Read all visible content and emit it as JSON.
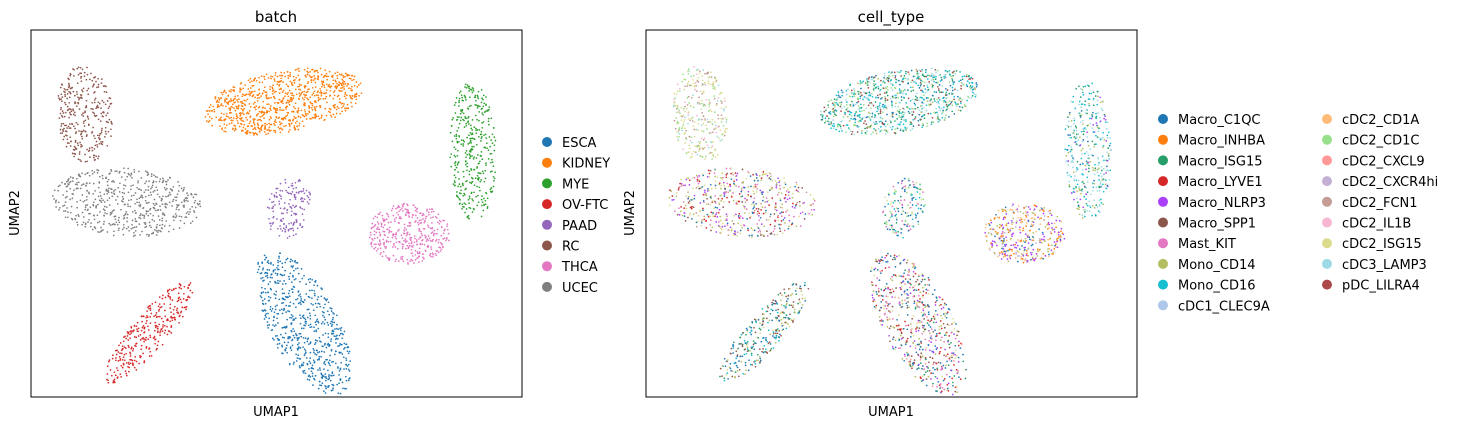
{
  "chart_data": [
    {
      "type": "scatter",
      "title": "batch",
      "xlabel": "UMAP1",
      "ylabel": "UMAP2",
      "xlim": [
        0,
        100
      ],
      "ylim": [
        0,
        100
      ],
      "grid": false,
      "legend": "right",
      "series": [
        {
          "name": "ESCA",
          "color": "#1f77b4",
          "cluster": {
            "cx": 55.5,
            "cy": 20.0,
            "rx": 7.5,
            "ry": 21.0,
            "angle": 0.35,
            "n": 650
          }
        },
        {
          "name": "KIDNEY",
          "color": "#ff7f0e",
          "cluster": {
            "cx": 51.5,
            "cy": 80.5,
            "rx": 17.0,
            "ry": 8.5,
            "angle": 0.28,
            "n": 900
          }
        },
        {
          "name": "MYE",
          "color": "#2ca02c",
          "cluster": {
            "cx": 90.0,
            "cy": 67.0,
            "rx": 4.8,
            "ry": 19.5,
            "angle": 0.02,
            "n": 380
          }
        },
        {
          "name": "OV-FTC",
          "color": "#d62728",
          "cluster": {
            "cx": 24.0,
            "cy": 17.5,
            "rx": 4.2,
            "ry": 16.5,
            "angle": -0.55,
            "n": 320
          }
        },
        {
          "name": "PAAD",
          "color": "#9467bd",
          "cluster": {
            "cx": 52.5,
            "cy": 51.5,
            "rx": 4.5,
            "ry": 8.5,
            "angle": -0.15,
            "n": 160
          }
        },
        {
          "name": "RC",
          "color": "#8c564b",
          "cluster": {
            "cx": 11.0,
            "cy": 77.0,
            "rx": 5.8,
            "ry": 13.5,
            "angle": 0.05,
            "n": 320
          }
        },
        {
          "name": "THCA",
          "color": "#e377c2",
          "cluster": {
            "cx": 77.0,
            "cy": 44.5,
            "rx": 8.5,
            "ry": 8.5,
            "angle": 1.55,
            "n": 400
          }
        },
        {
          "name": "UCEC",
          "color": "#7f7f7f",
          "cluster": {
            "cx": 19.5,
            "cy": 53.0,
            "rx": 9.5,
            "ry": 15.5,
            "angle": 1.45,
            "n": 560
          }
        }
      ]
    },
    {
      "type": "scatter",
      "title": "cell_type",
      "xlabel": "UMAP1",
      "ylabel": "UMAP2",
      "xlim": [
        0,
        100
      ],
      "ylim": [
        0,
        100
      ],
      "grid": false,
      "legend": "right",
      "legend_columns": 2,
      "series": [
        {
          "name": "Macro_C1QC",
          "color": "#1f77b4"
        },
        {
          "name": "Macro_INHBA",
          "color": "#ff7f0e"
        },
        {
          "name": "Macro_ISG15",
          "color": "#279e68"
        },
        {
          "name": "Macro_LYVE1",
          "color": "#d62728"
        },
        {
          "name": "Macro_NLRP3",
          "color": "#aa40fc"
        },
        {
          "name": "Macro_SPP1",
          "color": "#8c564b"
        },
        {
          "name": "Mast_KIT",
          "color": "#e377c2"
        },
        {
          "name": "Mono_CD14",
          "color": "#b5bd61"
        },
        {
          "name": "Mono_CD16",
          "color": "#17becf"
        },
        {
          "name": "cDC1_CLEC9A",
          "color": "#aec7e8"
        },
        {
          "name": "cDC2_CD1A",
          "color": "#ffbb78"
        },
        {
          "name": "cDC2_CD1C",
          "color": "#98df8a"
        },
        {
          "name": "cDC2_CXCL9",
          "color": "#ff9896"
        },
        {
          "name": "cDC2_CXCR4hi",
          "color": "#c5b0d5"
        },
        {
          "name": "cDC2_FCN1",
          "color": "#c49c94"
        },
        {
          "name": "cDC2_IL1B",
          "color": "#f7b6d2"
        },
        {
          "name": "cDC2_ISG15",
          "color": "#dbdb8d"
        },
        {
          "name": "cDC3_LAMP3",
          "color": "#9edae5"
        },
        {
          "name": "pDC_LILRA4",
          "color": "#ad494a"
        }
      ],
      "clusters": [
        {
          "cx": 55.5,
          "cy": 20.0,
          "rx": 7.5,
          "ry": 21.0,
          "angle": 0.35,
          "n": 650,
          "mix": {
            "Macro_C1QC": 4,
            "Macro_LYVE1": 3,
            "Macro_NLRP3": 2,
            "Macro_SPP1": 2,
            "Mast_KIT": 2,
            "Mono_CD14": 2,
            "cDC2_ISG15": 2,
            "Macro_ISG15": 1,
            "cDC2_CXCL9": 1
          }
        },
        {
          "cx": 51.5,
          "cy": 80.5,
          "rx": 17.0,
          "ry": 8.5,
          "angle": 0.28,
          "n": 900,
          "mix": {
            "Mono_CD16": 4,
            "cDC3_LAMP3": 4,
            "Macro_ISG15": 3,
            "cDC2_CD1C": 3,
            "Macro_C1QC": 2,
            "Mono_CD14": 1,
            "Macro_SPP1": 1,
            "pDC_LILRA4": 1
          }
        },
        {
          "cx": 90.0,
          "cy": 67.0,
          "rx": 4.8,
          "ry": 19.5,
          "angle": 0.02,
          "n": 380,
          "mix": {
            "cDC3_LAMP3": 4,
            "Mono_CD16": 3,
            "Mono_CD14": 2,
            "Macro_ISG15": 2,
            "Macro_C1QC": 1,
            "Macro_NLRP3": 1
          }
        },
        {
          "cx": 24.0,
          "cy": 17.5,
          "rx": 4.2,
          "ry": 16.5,
          "angle": -0.55,
          "n": 320,
          "mix": {
            "Macro_SPP1": 3,
            "Macro_C1QC": 3,
            "Mono_CD16": 2,
            "Macro_ISG15": 2,
            "Mono_CD14": 2,
            "cDC2_ISG15": 1
          }
        },
        {
          "cx": 52.5,
          "cy": 51.5,
          "rx": 4.5,
          "ry": 8.5,
          "angle": -0.15,
          "n": 160,
          "mix": {
            "Macro_C1QC": 3,
            "Mast_KIT": 2,
            "cDC2_CD1C": 2,
            "Mono_CD16": 1,
            "Macro_ISG15": 1,
            "cDC2_ISG15": 1
          }
        },
        {
          "cx": 11.0,
          "cy": 77.0,
          "rx": 5.8,
          "ry": 13.5,
          "angle": 0.05,
          "n": 320,
          "mix": {
            "cDC2_ISG15": 4,
            "cDC2_CD1C": 2,
            "cDC2_FCN1": 2,
            "cDC3_LAMP3": 1,
            "cDC2_IL1B": 1
          }
        },
        {
          "cx": 77.0,
          "cy": 44.5,
          "rx": 8.5,
          "ry": 8.5,
          "angle": 1.55,
          "n": 400,
          "mix": {
            "Macro_NLRP3": 3,
            "Macro_INHBA": 3,
            "Mono_CD14": 2,
            "cDC2_CD1A": 2,
            "Macro_C1QC": 1,
            "cDC2_CXCR4hi": 1
          }
        },
        {
          "cx": 19.5,
          "cy": 53.0,
          "rx": 9.5,
          "ry": 15.5,
          "angle": 1.45,
          "n": 560,
          "mix": {
            "cDC2_ISG15": 3,
            "Macro_C1QC": 2,
            "Macro_LYVE1": 2,
            "Mono_CD14": 2,
            "Mast_KIT": 2,
            "Macro_NLRP3": 2,
            "cDC2_FCN1": 1,
            "Macro_SPP1": 1
          }
        }
      ]
    }
  ]
}
